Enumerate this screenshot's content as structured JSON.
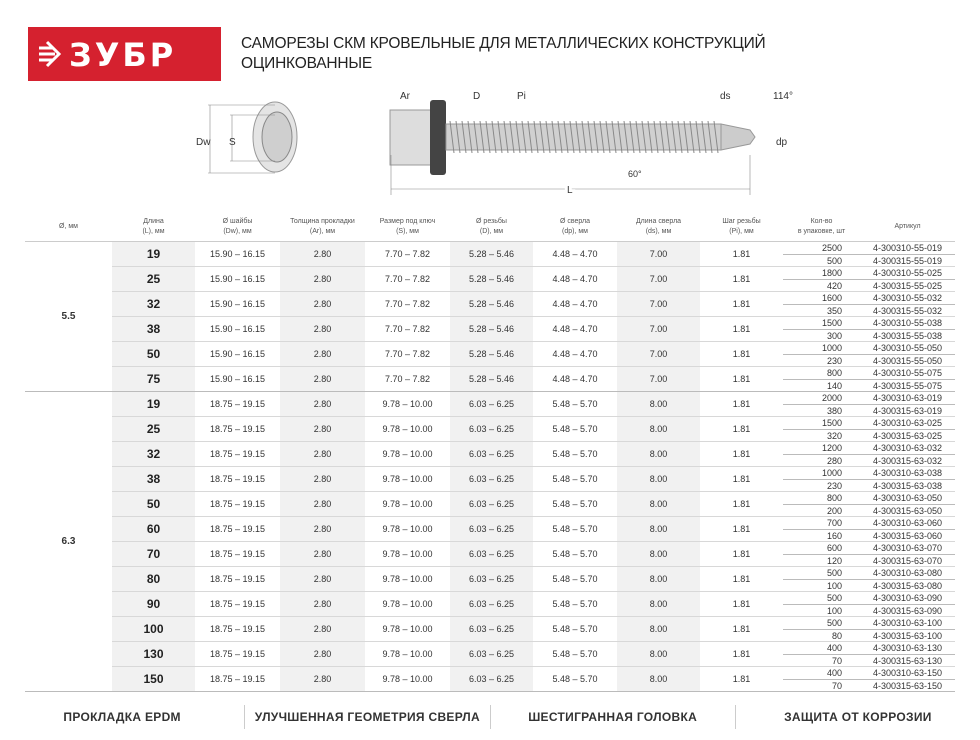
{
  "brand": {
    "logo_text": "ЗУБР",
    "color": "#d5212f"
  },
  "title": {
    "line1": "САМОРЕЗЫ СКМ КРОВЕЛЬНЫЕ ДЛЯ МЕТАЛЛИЧЕСКИХ КОНСТРУКЦИЙ",
    "line2": "ОЦИНКОВАННЫЕ"
  },
  "drawing_labels": {
    "dw": "Dw",
    "s": "S",
    "ar": "Ar",
    "d": "D",
    "pi": "Pi",
    "ds": "ds",
    "angle_tip": "114°",
    "dp": "dp",
    "angle_thread": "60°",
    "l": "L"
  },
  "table": {
    "headers": [
      [
        "Ø, мм",
        ""
      ],
      [
        "Длина",
        "(L), мм"
      ],
      [
        "Ø шайбы",
        "(Dw), мм"
      ],
      [
        "Толщина прокладки",
        "(Ar), мм"
      ],
      [
        "Размер под ключ",
        "(S), мм"
      ],
      [
        "Ø резьбы",
        "(D), мм"
      ],
      [
        "Ø сверла",
        "(dp), мм"
      ],
      [
        "Длина сверла",
        "(ds), мм"
      ],
      [
        "Шаг резьбы",
        "(Pi), мм"
      ],
      [
        "Кол-во",
        "в упаковке, шт"
      ],
      [
        "Артикул",
        ""
      ]
    ],
    "groups": [
      {
        "diameter": "5.5",
        "dw": "15.90 – 16.15",
        "ar": "2.80",
        "s": "7.70 – 7.82",
        "d": "5.28 – 5.46",
        "dp": "4.48 – 4.70",
        "ds": "7.00",
        "pi": "1.81",
        "rows": [
          {
            "length": "19",
            "qty": [
              "2500",
              "500"
            ],
            "art": [
              "4-300310-55-019",
              "4-300315-55-019"
            ]
          },
          {
            "length": "25",
            "qty": [
              "1800",
              "420"
            ],
            "art": [
              "4-300310-55-025",
              "4-300315-55-025"
            ]
          },
          {
            "length": "32",
            "qty": [
              "1600",
              "350"
            ],
            "art": [
              "4-300310-55-032",
              "4-300315-55-032"
            ]
          },
          {
            "length": "38",
            "qty": [
              "1500",
              "300"
            ],
            "art": [
              "4-300310-55-038",
              "4-300315-55-038"
            ]
          },
          {
            "length": "50",
            "qty": [
              "1000",
              "230"
            ],
            "art": [
              "4-300310-55-050",
              "4-300315-55-050"
            ]
          },
          {
            "length": "75",
            "qty": [
              "800",
              "140"
            ],
            "art": [
              "4-300310-55-075",
              "4-300315-55-075"
            ]
          }
        ]
      },
      {
        "diameter": "6.3",
        "dw": "18.75 – 19.15",
        "ar": "2.80",
        "s": "9.78 – 10.00",
        "d": "6.03 – 6.25",
        "dp": "5.48 – 5.70",
        "ds": "8.00",
        "pi": "1.81",
        "rows": [
          {
            "length": "19",
            "qty": [
              "2000",
              "380"
            ],
            "art": [
              "4-300310-63-019",
              "4-300315-63-019"
            ]
          },
          {
            "length": "25",
            "qty": [
              "1500",
              "320"
            ],
            "art": [
              "4-300310-63-025",
              "4-300315-63-025"
            ]
          },
          {
            "length": "32",
            "qty": [
              "1200",
              "280"
            ],
            "art": [
              "4-300310-63-032",
              "4-300315-63-032"
            ]
          },
          {
            "length": "38",
            "qty": [
              "1000",
              "230"
            ],
            "art": [
              "4-300310-63-038",
              "4-300315-63-038"
            ]
          },
          {
            "length": "50",
            "qty": [
              "800",
              "200"
            ],
            "art": [
              "4-300310-63-050",
              "4-300315-63-050"
            ]
          },
          {
            "length": "60",
            "qty": [
              "700",
              "160"
            ],
            "art": [
              "4-300310-63-060",
              "4-300315-63-060"
            ]
          },
          {
            "length": "70",
            "qty": [
              "600",
              "120"
            ],
            "art": [
              "4-300310-63-070",
              "4-300315-63-070"
            ]
          },
          {
            "length": "80",
            "qty": [
              "500",
              "100"
            ],
            "art": [
              "4-300310-63-080",
              "4-300315-63-080"
            ]
          },
          {
            "length": "90",
            "qty": [
              "500",
              "100"
            ],
            "art": [
              "4-300310-63-090",
              "4-300315-63-090"
            ]
          },
          {
            "length": "100",
            "qty": [
              "500",
              "80"
            ],
            "art": [
              "4-300310-63-100",
              "4-300315-63-100"
            ]
          },
          {
            "length": "130",
            "qty": [
              "400",
              "70"
            ],
            "art": [
              "4-300310-63-130",
              "4-300315-63-130"
            ]
          },
          {
            "length": "150",
            "qty": [
              "400",
              "70"
            ],
            "art": [
              "4-300310-63-150",
              "4-300315-63-150"
            ]
          }
        ]
      }
    ]
  },
  "features": [
    "ПРОКЛАДКА EPDM",
    "УЛУЧШЕННАЯ ГЕОМЕТРИЯ СВЕРЛА",
    "ШЕСТИГРАННАЯ ГОЛОВКА",
    "ЗАЩИТА ОТ КОРРОЗИИ"
  ]
}
